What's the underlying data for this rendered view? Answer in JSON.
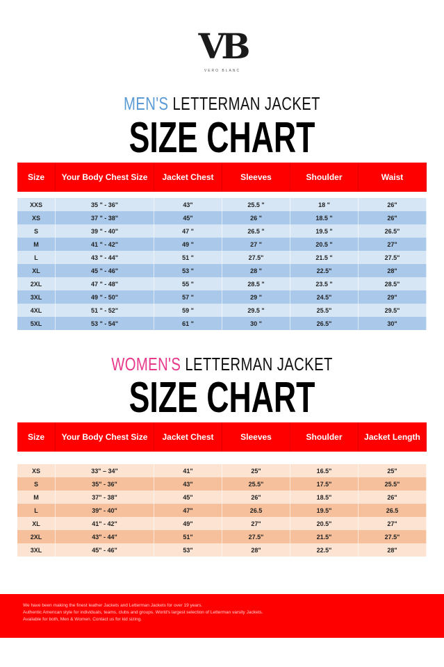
{
  "logo": {
    "mark": "VB",
    "tagline": "VERO BLANC"
  },
  "men": {
    "prefix": "MEN'S",
    "title": "LETTERMAN JACKET",
    "heading": "SIZE CHART",
    "prefix_color": "#5b9bd5",
    "columns": [
      "Size",
      "Your Body Chest Size",
      "Jacket Chest",
      "Sleeves",
      "Shoulder",
      "Waist"
    ],
    "rows": [
      [
        "XXS",
        "35 \" - 36\"",
        "43\"",
        "25.5 \"",
        "18 \"",
        "26\""
      ],
      [
        "XS",
        "37 \" - 38\"",
        "45\"",
        "26 \"",
        "18.5 \"",
        "26\""
      ],
      [
        "S",
        "39 \" - 40\"",
        "47 \"",
        "26.5 \"",
        "19.5 \"",
        "26.5\""
      ],
      [
        "M",
        "41 \" - 42\"",
        "49 \"",
        "27 \"",
        "20.5 \"",
        "27\""
      ],
      [
        "L",
        "43 \" - 44\"",
        "51 \"",
        "27.5\"",
        "21.5 \"",
        "27.5\""
      ],
      [
        "XL",
        "45 \" - 46\"",
        "53 \"",
        "28 \"",
        "22.5\"",
        "28\""
      ],
      [
        "2XL",
        "47 \" - 48\"",
        "55 \"",
        "28.5 \"",
        "23.5 \"",
        "28.5\""
      ],
      [
        "3XL",
        "49 \" - 50\"",
        "57 \"",
        "29 \"",
        "24.5\"",
        "29\""
      ],
      [
        "4XL",
        "51 \" - 52\"",
        "59 \"",
        "29.5 \"",
        "25.5\"",
        "29.5\""
      ],
      [
        "5XL",
        "53 \" - 54\"",
        "61 \"",
        "30 \"",
        "26.5\"",
        "30\""
      ]
    ],
    "row_colors": [
      "#d6e6f5",
      "#a9c8ea"
    ]
  },
  "women": {
    "prefix": "WOMEN'S",
    "title": "LETTERMAN JACKET",
    "heading": "SIZE CHART",
    "prefix_color": "#e8388a",
    "columns": [
      "Size",
      "Your Body Chest Size",
      "Jacket Chest",
      "Sleeves",
      "Shoulder",
      "Jacket Length"
    ],
    "rows": [
      [
        "XS",
        "33\" – 34\"",
        "41\"",
        "25\"",
        "16.5\"",
        "25\""
      ],
      [
        "S",
        "35\" - 36\"",
        "43\"",
        "25.5\"",
        "17.5\"",
        "25.5\""
      ],
      [
        "M",
        "37\" - 38\"",
        "45\"",
        "26\"",
        "18.5\"",
        "26\""
      ],
      [
        "L",
        "39\" - 40\"",
        "47\"",
        "26.5",
        "19.5\"",
        "26.5"
      ],
      [
        "XL",
        "41\" - 42\"",
        "49\"",
        "27\"",
        "20.5\"",
        "27\""
      ],
      [
        "2XL",
        "43\" - 44\"",
        "51\"",
        "27.5\"",
        "21.5\"",
        "27.5\""
      ],
      [
        "3XL",
        "45\" - 46\"",
        "53\"",
        "28\"",
        "22.5\"",
        "28\""
      ]
    ],
    "row_colors": [
      "#fce3d2",
      "#f7c09c"
    ]
  },
  "footer": {
    "lines": [
      "We have been making the finest leather Jackets and Letterman Jackets for over 19 years.",
      "Authentic American style for individuals, teams, clubs and groups. World's largest selection of Letterman varsity Jackets.",
      "Available for both, Men & Women. Contact us for kid sizing."
    ]
  },
  "brand_color": "#ff0000"
}
